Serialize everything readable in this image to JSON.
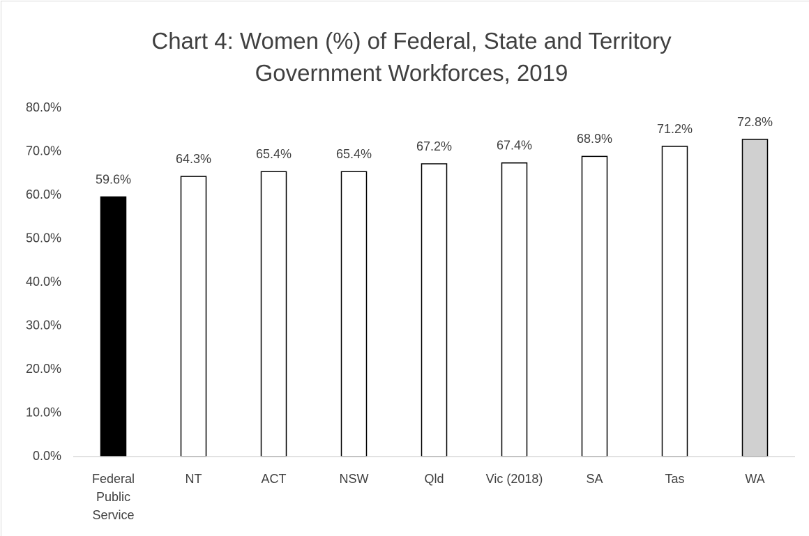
{
  "chart_data": {
    "type": "bar",
    "title": "Chart 4: Women (%) of Federal, State and Territory Government Workforces, 2019",
    "categories": [
      "Federal Public Service",
      "NT",
      "ACT",
      "NSW",
      "Qld",
      "Vic (2018)",
      "SA",
      "Tas",
      "WA"
    ],
    "values": [
      59.6,
      64.3,
      65.4,
      65.4,
      67.2,
      67.4,
      68.9,
      71.2,
      72.8
    ],
    "value_labels": [
      "59.6%",
      "64.3%",
      "65.4%",
      "65.4%",
      "67.2%",
      "67.4%",
      "68.9%",
      "71.2%",
      "72.8%"
    ],
    "colors": [
      "#000000",
      "#ffffff",
      "#ffffff",
      "#ffffff",
      "#ffffff",
      "#ffffff",
      "#ffffff",
      "#ffffff",
      "#d0d0d0"
    ],
    "ylim": [
      0,
      80
    ],
    "yticks": [
      {
        "value": 0,
        "label": "0.0%"
      },
      {
        "value": 10,
        "label": "10.0%"
      },
      {
        "value": 20,
        "label": "20.0%"
      },
      {
        "value": 30,
        "label": "30.0%"
      },
      {
        "value": 40,
        "label": "40.0%"
      },
      {
        "value": 50,
        "label": "50.0%"
      },
      {
        "value": 60,
        "label": "60.0%"
      },
      {
        "value": 70,
        "label": "70.0%"
      },
      {
        "value": 80,
        "label": "80.0%"
      }
    ],
    "grid": false
  }
}
